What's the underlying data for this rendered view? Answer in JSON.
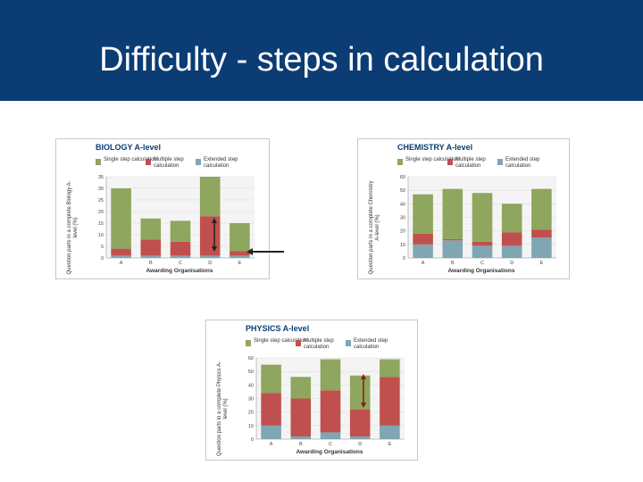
{
  "slide": {
    "title": "Difficulty - steps in calculation",
    "colors": {
      "header": "#0b3c74",
      "title_text": "#ffffff",
      "arrow_dark": "#222222",
      "arrow_red": "#8a1a1a"
    }
  },
  "series_colors": {
    "single": "#8ea65e",
    "multiple": "#c0504d",
    "extended": "#7fa6b3"
  },
  "chart_data": [
    {
      "type": "bar",
      "stacked": true,
      "title": "BIOLOGY A-level",
      "xlabel": "Awarding Organisations",
      "ylabel": "Question parts in a complete Biology A-level (%)",
      "categories": [
        "A",
        "B",
        "C",
        "D",
        "E"
      ],
      "series": [
        {
          "name": "Extended step calculation",
          "values": [
            1,
            1,
            1,
            1,
            1
          ]
        },
        {
          "name": "Multiple step calculation",
          "values": [
            3,
            7,
            6,
            17,
            2
          ]
        },
        {
          "name": "Single step calculation",
          "values": [
            26,
            9,
            9,
            17,
            12
          ]
        }
      ],
      "ylim": [
        0,
        35
      ],
      "yticks": [
        "0",
        "5",
        "10",
        "15",
        "20",
        "25",
        "30",
        "35"
      ],
      "legend_position": "top"
    },
    {
      "type": "bar",
      "stacked": true,
      "title": "CHEMISTRY A-level",
      "xlabel": "Awarding Organisations",
      "ylabel": "Question parts in a complete Chemistry A-level (%)",
      "categories": [
        "A",
        "B",
        "C",
        "D",
        "E"
      ],
      "series": [
        {
          "name": "Extended step calculation",
          "values": [
            10,
            13,
            9,
            9,
            15
          ]
        },
        {
          "name": "Multiple step calculation",
          "values": [
            8,
            1,
            3,
            10,
            6
          ]
        },
        {
          "name": "Single step calculation",
          "values": [
            29,
            37,
            36,
            21,
            30
          ]
        }
      ],
      "ylim": [
        0,
        60
      ],
      "yticks": [
        "0",
        "10",
        "20",
        "30",
        "40",
        "50",
        "60"
      ],
      "legend_position": "top"
    },
    {
      "type": "bar",
      "stacked": true,
      "title": "PHYSICS A-level",
      "xlabel": "Awarding Organisations",
      "ylabel": "Question parts in a complete Physics A-level (%)",
      "categories": [
        "A",
        "B",
        "C",
        "D",
        "E"
      ],
      "series": [
        {
          "name": "Extended step calculation",
          "values": [
            10,
            2,
            5,
            2,
            10
          ]
        },
        {
          "name": "Multiple step calculation",
          "values": [
            24,
            28,
            31,
            20,
            36
          ]
        },
        {
          "name": "Single step calculation",
          "values": [
            21,
            16,
            23,
            25,
            13
          ]
        }
      ],
      "ylim": [
        0,
        60
      ],
      "yticks": [
        "0",
        "10",
        "20",
        "30",
        "40",
        "50",
        "60"
      ],
      "legend_position": "top"
    }
  ]
}
